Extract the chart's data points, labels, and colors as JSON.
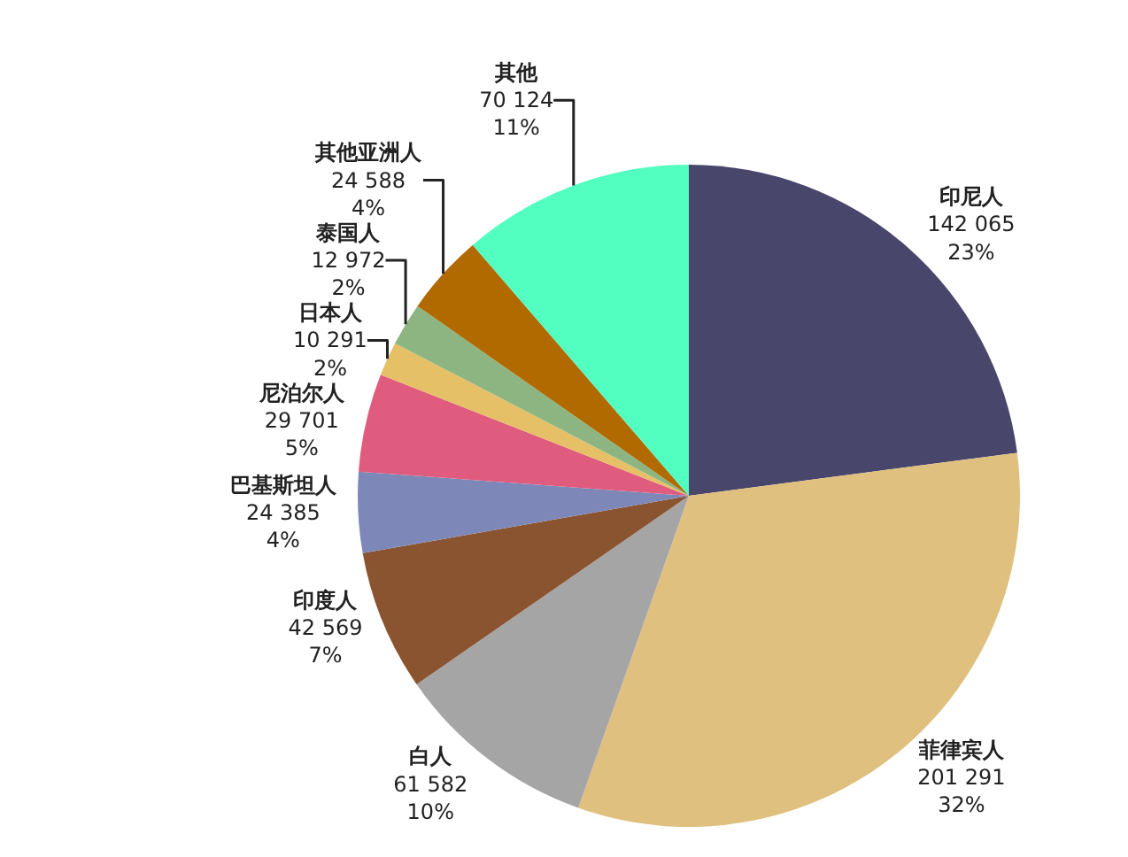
{
  "chart_data": {
    "type": "pie",
    "categories": [
      "印尼人",
      "菲律宾人",
      "白人",
      "印度人",
      "巴基斯坦人",
      "尼泊尔人",
      "日本人",
      "泰国人",
      "其他亚洲人",
      "其他"
    ],
    "values": [
      142065,
      201291,
      61582,
      42569,
      24385,
      29701,
      10291,
      12972,
      24588,
      70124
    ],
    "colors": [
      "#48466b",
      "#dfc07f",
      "#a5a5a5",
      "#8b5430",
      "#7e88b8",
      "#e05c7f",
      "#e6c067",
      "#8db582",
      "#b06a00",
      "#52ffc0"
    ],
    "value_labels": [
      "142 065\n23%",
      "201 291\n32%",
      "61 582\n10%",
      "42 569\n7%",
      "24 385\n4%",
      "29 701\n5%",
      "10 291\n2%",
      "12 972\n2%",
      "24 588\n4%",
      "70 124\n11%"
    ]
  }
}
